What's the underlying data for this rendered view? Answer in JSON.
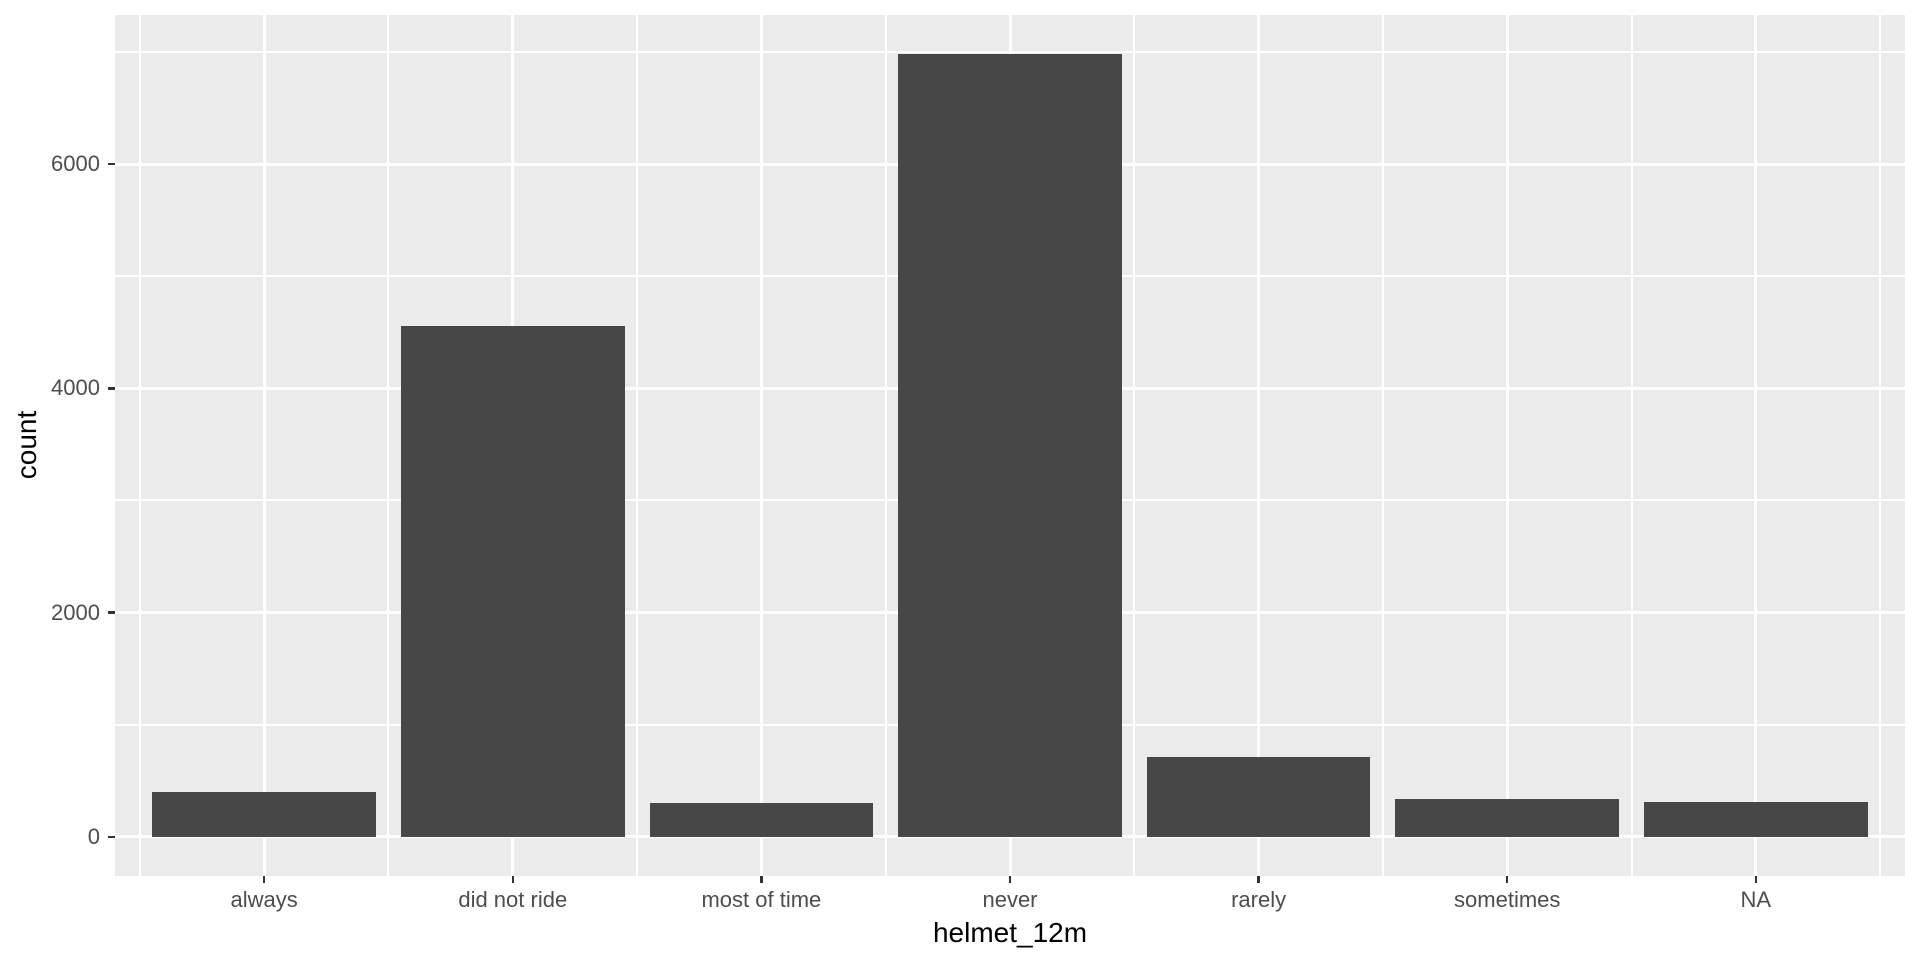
{
  "chart_data": {
    "type": "bar",
    "title": "",
    "xlabel": "helmet_12m",
    "ylabel": "count",
    "categories": [
      "always",
      "did not ride",
      "most of time",
      "never",
      "rarely",
      "sometimes",
      "NA"
    ],
    "values": [
      400,
      4560,
      300,
      6980,
      710,
      335,
      310
    ],
    "yticks": [
      0,
      2000,
      4000,
      6000
    ],
    "ytick_labels": [
      "0",
      "2000",
      "4000",
      "6000"
    ],
    "yticks_minor": [
      1000,
      3000,
      5000,
      7000
    ],
    "ylim": [
      -349,
      7329
    ],
    "grid": "major and minor gridlines, white on grey panel",
    "legend": "none",
    "colors": {
      "bar_fill": "#474747",
      "panel_background": "#EBEBEB",
      "gridline": "#FFFFFF",
      "tick_label": "#4D4D4D",
      "axis_title": "#000000",
      "tick_mark": "#333333",
      "page_background": "#FFFFFF"
    },
    "theme": "ggplot2 grey"
  }
}
